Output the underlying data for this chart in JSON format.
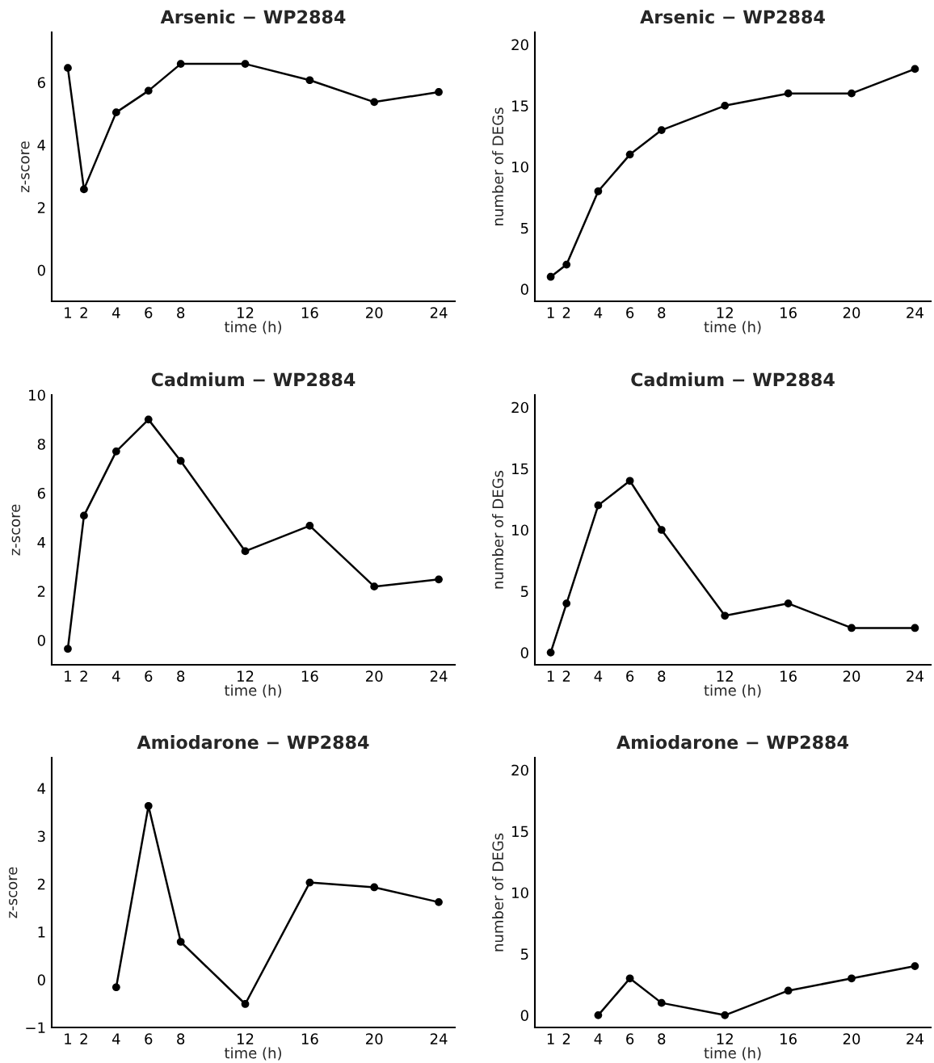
{
  "chart_data": [
    {
      "type": "line",
      "title": "Arsenic − WP2884",
      "xlabel": "time (h)",
      "ylabel": "z-score",
      "marker": "circle",
      "line_style": "solid",
      "x": [
        1,
        2,
        4,
        6,
        8,
        12,
        16,
        20,
        24
      ],
      "xlim": [
        0,
        25
      ],
      "xticks": [
        1,
        2,
        4,
        6,
        8,
        12,
        16,
        20,
        24
      ],
      "ylim": [
        -1,
        7.6
      ],
      "yticks": [
        0,
        2,
        4,
        6
      ],
      "series": [
        {
          "color": "#000000",
          "values": [
            6.46,
            2.58,
            5.04,
            5.73,
            6.59,
            6.59,
            6.07,
            5.37,
            5.69
          ]
        }
      ]
    },
    {
      "type": "line",
      "title": "Arsenic − WP2884",
      "xlabel": "time (h)",
      "ylabel": "number of DEGs",
      "marker": "circle",
      "line_style": "solid",
      "x": [
        1,
        2,
        4,
        6,
        8,
        12,
        16,
        20,
        24
      ],
      "xlim": [
        0,
        25
      ],
      "xticks": [
        1,
        2,
        4,
        6,
        8,
        12,
        16,
        20,
        24
      ],
      "ylim": [
        -1,
        21
      ],
      "yticks": [
        0,
        5,
        10,
        15,
        20
      ],
      "series": [
        {
          "color": "#000000",
          "values": [
            1,
            2,
            8,
            11,
            13,
            15,
            16,
            16,
            18
          ]
        }
      ]
    },
    {
      "type": "line",
      "title": "Cadmium − WP2884",
      "xlabel": "time (h)",
      "ylabel": "z-score",
      "marker": "circle",
      "line_style": "solid",
      "x": [
        1,
        2,
        4,
        6,
        8,
        12,
        16,
        20,
        24
      ],
      "xlim": [
        0,
        25
      ],
      "xticks": [
        1,
        2,
        4,
        6,
        8,
        12,
        16,
        20,
        24
      ],
      "ylim": [
        -1,
        10
      ],
      "yticks": [
        0,
        2,
        4,
        6,
        8,
        10
      ],
      "series": [
        {
          "color": "#000000",
          "values": [
            -0.35,
            5.08,
            7.7,
            9.0,
            7.31,
            3.63,
            4.67,
            2.19,
            2.48
          ]
        }
      ]
    },
    {
      "type": "line",
      "title": "Cadmium − WP2884",
      "xlabel": "time (h)",
      "ylabel": "number of DEGs",
      "marker": "circle",
      "line_style": "solid",
      "x": [
        1,
        2,
        4,
        6,
        8,
        12,
        16,
        20,
        24
      ],
      "xlim": [
        0,
        25
      ],
      "xticks": [
        1,
        2,
        4,
        6,
        8,
        12,
        16,
        20,
        24
      ],
      "ylim": [
        -1,
        21
      ],
      "yticks": [
        0,
        5,
        10,
        15,
        20
      ],
      "series": [
        {
          "color": "#000000",
          "values": [
            0,
            4,
            12,
            14,
            10,
            3,
            4,
            2,
            2
          ]
        }
      ]
    },
    {
      "type": "line",
      "title": "Amiodarone − WP2884",
      "xlabel": "time (h)",
      "ylabel": "z-score",
      "marker": "circle",
      "line_style": "solid",
      "x": [
        4,
        6,
        8,
        12,
        16,
        20,
        24
      ],
      "xlim": [
        0,
        25
      ],
      "xticks": [
        1,
        2,
        4,
        6,
        8,
        12,
        16,
        20,
        24
      ],
      "ylim": [
        -1,
        4.64
      ],
      "yticks": [
        {
          "value": -1,
          "label": "−1"
        },
        0,
        1,
        2,
        3,
        4
      ],
      "series": [
        {
          "color": "#000000",
          "values": [
            -0.16,
            3.63,
            0.79,
            -0.51,
            2.03,
            1.93,
            1.62
          ]
        }
      ]
    },
    {
      "type": "line",
      "title": "Amiodarone − WP2884",
      "xlabel": "time (h)",
      "ylabel": "number of DEGs",
      "marker": "circle",
      "line_style": "solid",
      "x": [
        4,
        6,
        8,
        12,
        16,
        20,
        24
      ],
      "xlim": [
        0,
        25
      ],
      "xticks": [
        1,
        2,
        4,
        6,
        8,
        12,
        16,
        20,
        24
      ],
      "ylim": [
        -1,
        21
      ],
      "yticks": [
        0,
        5,
        10,
        15,
        20
      ],
      "series": [
        {
          "color": "#000000",
          "values": [
            0,
            3,
            1,
            0,
            2,
            3,
            4
          ]
        }
      ]
    }
  ]
}
